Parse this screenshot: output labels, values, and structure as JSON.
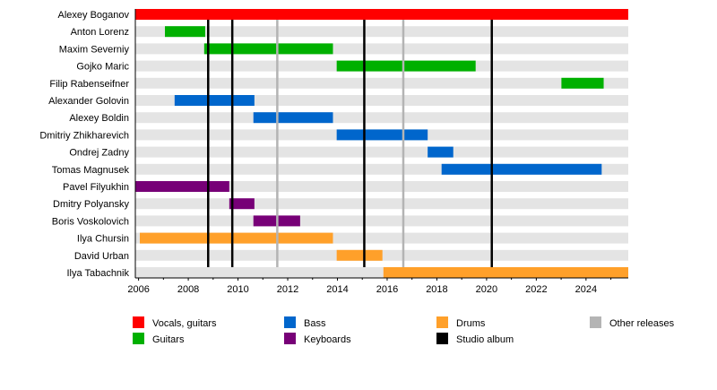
{
  "chart_data": {
    "type": "timeline-bar",
    "title": "",
    "xlim": [
      2005.87,
      2025.7
    ],
    "x_ticks": [
      2006,
      2008,
      2010,
      2012,
      2014,
      2016,
      2018,
      2020,
      2022,
      2024
    ],
    "colors": {
      "Vocals, guitars": "#ff0000",
      "Guitars": "#00b000",
      "Bass": "#0066cc",
      "Keyboards": "#770077",
      "Drums": "#ffa02a",
      "Studio album": "#000000",
      "Other releases": "#b4b4b4",
      "row_background": "#e4e4e4"
    },
    "members": [
      {
        "name": "Alexey Boganov",
        "role": "Vocals, guitars",
        "start": 2005.87,
        "end": 2025.7
      },
      {
        "name": "Anton Lorenz",
        "role": "Guitars",
        "start": 2007.06,
        "end": 2008.68
      },
      {
        "name": "Maxim Severniy",
        "role": "Guitars",
        "start": 2008.64,
        "end": 2013.82
      },
      {
        "name": "Gojko Maric",
        "role": "Guitars",
        "start": 2013.97,
        "end": 2019.56
      },
      {
        "name": "Filip Rabenseifner",
        "role": "Guitars",
        "start": 2023.01,
        "end": 2024.71
      },
      {
        "name": "Alexander Golovin",
        "role": "Bass",
        "start": 2007.45,
        "end": 2010.66
      },
      {
        "name": "Alexey Boldin",
        "role": "Bass",
        "start": 2010.62,
        "end": 2013.82
      },
      {
        "name": "Dmitriy Zhikharevich",
        "role": "Bass",
        "start": 2013.97,
        "end": 2017.63
      },
      {
        "name": "Ondrej Zadny",
        "role": "Bass",
        "start": 2017.63,
        "end": 2018.66
      },
      {
        "name": "Tomas Magnusek",
        "role": "Bass",
        "start": 2018.19,
        "end": 2024.63
      },
      {
        "name": "Pavel Filyukhin",
        "role": "Keyboards",
        "start": 2005.87,
        "end": 2009.65
      },
      {
        "name": "Dmitry Polyansky",
        "role": "Keyboards",
        "start": 2009.65,
        "end": 2010.66
      },
      {
        "name": "Boris Voskolovich",
        "role": "Keyboards",
        "start": 2010.62,
        "end": 2012.5
      },
      {
        "name": "Ilya Chursin",
        "role": "Drums",
        "start": 2006.05,
        "end": 2013.82
      },
      {
        "name": "David Urban",
        "role": "Drums",
        "start": 2013.97,
        "end": 2015.81
      },
      {
        "name": "Ilya Tabachnik",
        "role": "Drums",
        "start": 2015.85,
        "end": 2025.7
      }
    ],
    "studio_albums": [
      2008.8,
      2009.77,
      2015.08,
      2020.21
    ],
    "other_releases": [
      2011.58,
      2016.65
    ],
    "legend": [
      "Vocals, guitars",
      "Guitars",
      "Bass",
      "Keyboards",
      "Drums",
      "Studio album",
      "Other releases"
    ],
    "legend_placement": "bottom"
  }
}
